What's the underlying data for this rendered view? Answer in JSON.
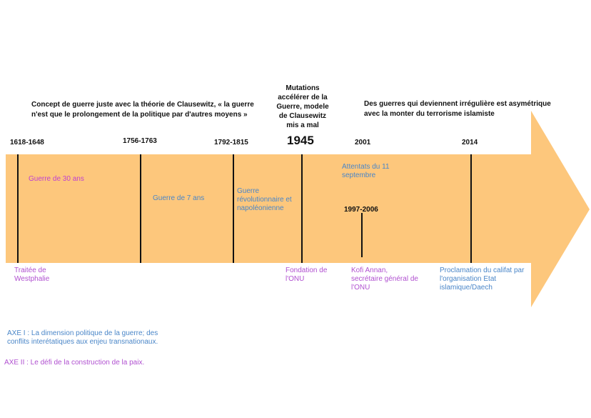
{
  "colors": {
    "arrow": "#fdc77c",
    "blue_text": "#4a86c8",
    "pink_text": "#c040d0",
    "purple_text": "#b050d0"
  },
  "headers": {
    "clausewitz": "Concept de guerre juste avec la théorie de Clausewitz, « la guerre n'est que le prolongement de la politique par d'autres moyens »",
    "mutations": "Mutations accélérer de la Guerre, modele de Clausewitz mis a mal",
    "irregular": "Des guerres qui deviennent irrégulière est asymétrique avec la monter du terrorisme islamiste"
  },
  "years": {
    "y1618": "1618-1648",
    "y1756": "1756-1763",
    "y1792": "1792-1815",
    "y1945": "1945",
    "y2001": "2001",
    "y2014": "2014"
  },
  "inside": {
    "guerre30": "Guerre de 30 ans",
    "guerre7": "Guerre de 7 ans",
    "revolution": "Guerre révolutionnaire et napoléonienne",
    "attentats": "Attentats du 11 septembre",
    "annan_years": "1997-2006"
  },
  "below": {
    "westphalie": "Traitée de Westphalie",
    "onu": "Fondation de l'ONU",
    "annan": "Kofi Annan, secrétaire général de l'ONU",
    "califat": "Proclamation du califat par l'organisation Etat islamique/Daech"
  },
  "axes": {
    "axe1": "AXE I :   La dimension politique de la guerre; des conflits interétatiques aux enjeu transnationaux.",
    "axe2": "AXE II :  Le défi de la construction de la paix."
  }
}
